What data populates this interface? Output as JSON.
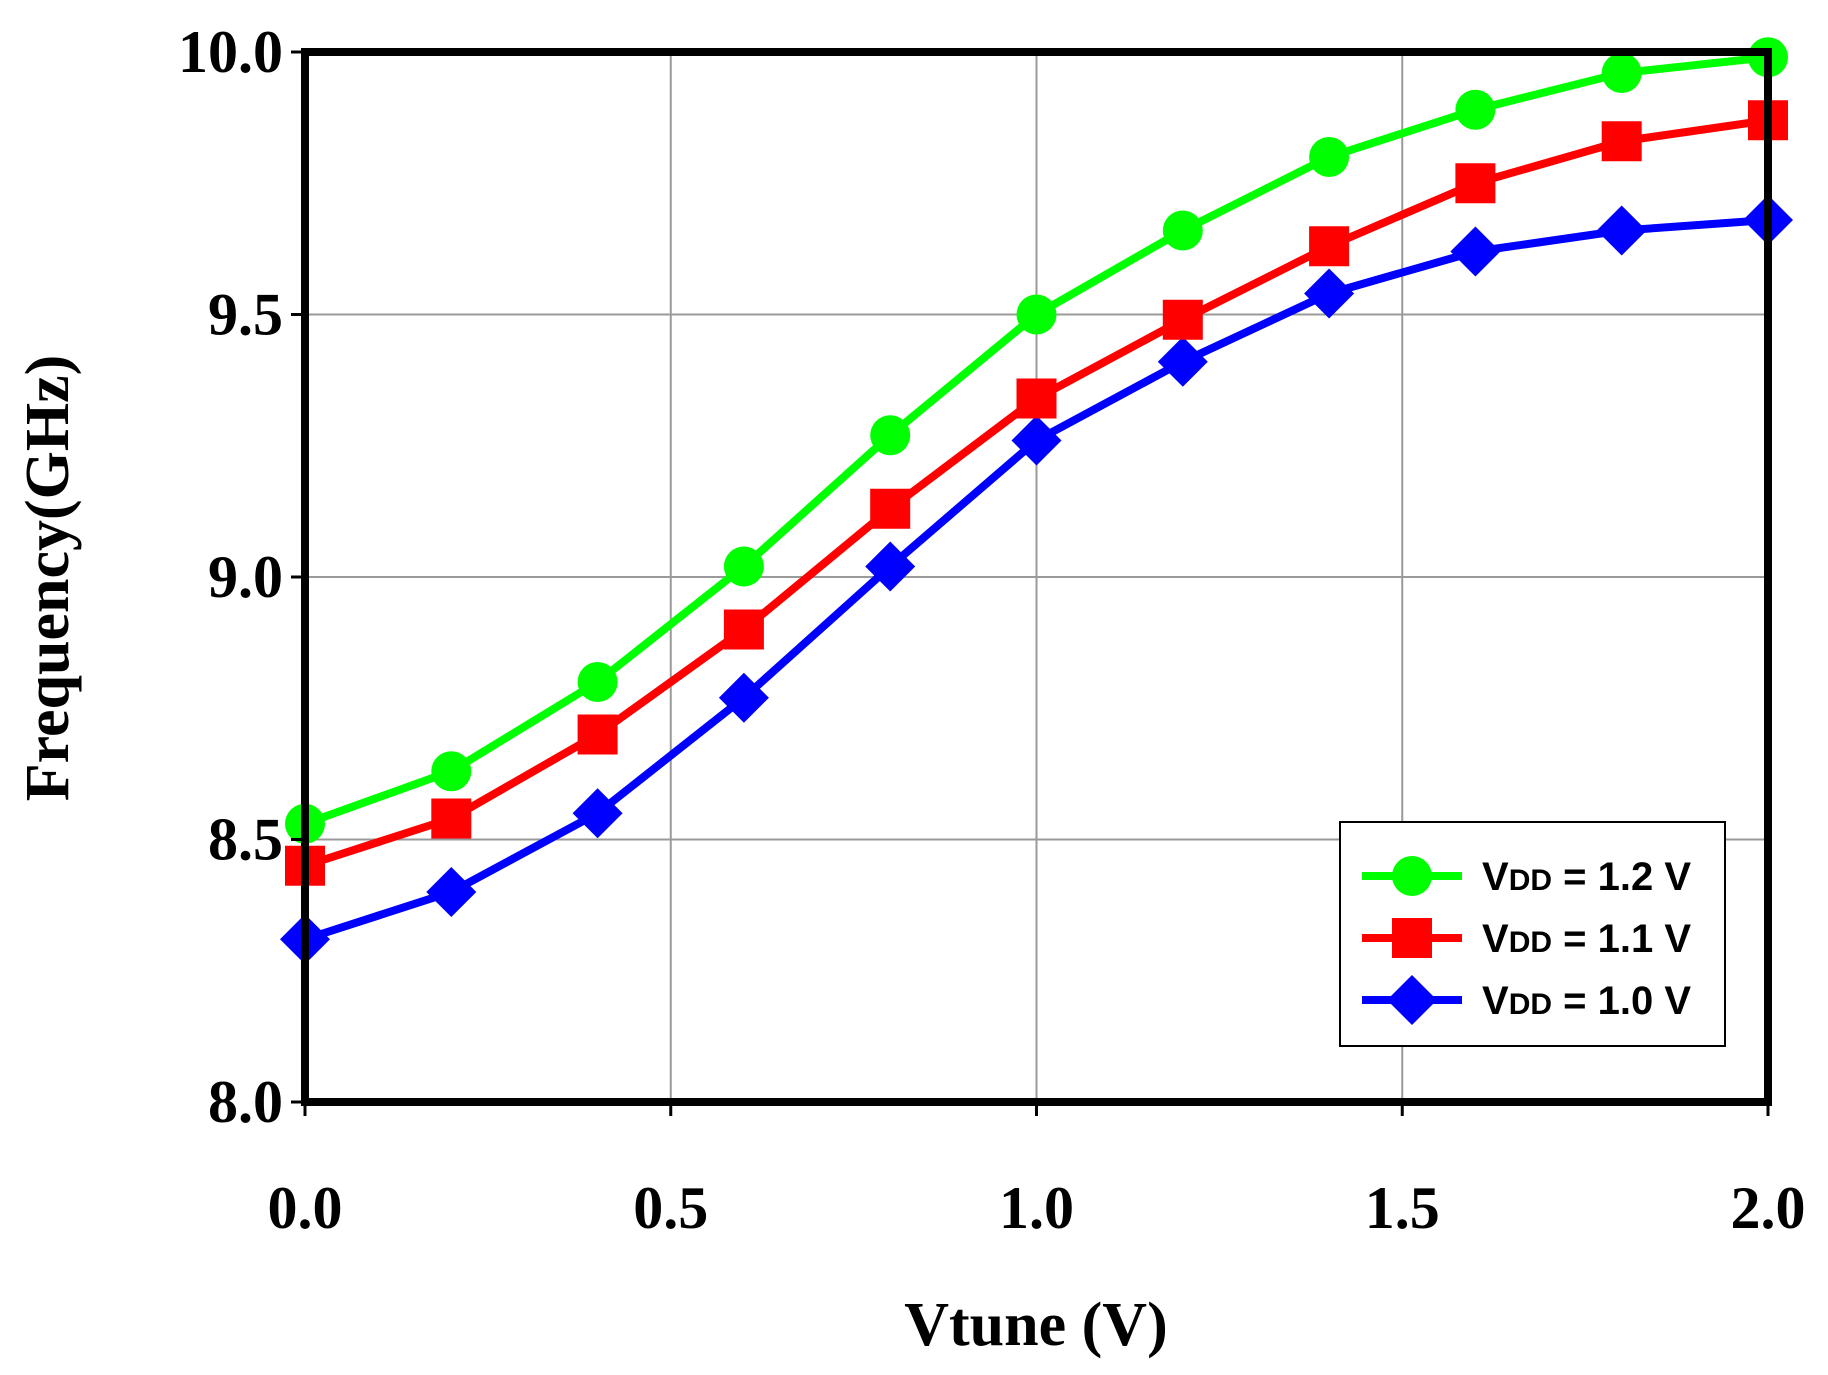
{
  "chart_data": {
    "type": "line",
    "title": "",
    "xlabel": "Vtune (V)",
    "ylabel": "Frequency(GHz)",
    "xlim": [
      0.0,
      2.0
    ],
    "ylim": [
      8.0,
      10.0
    ],
    "x_ticks": [
      "0.0",
      "0.5",
      "1.0",
      "1.5",
      "2.0"
    ],
    "y_ticks": [
      "8.0",
      "8.5",
      "9.0",
      "9.5",
      "10.0"
    ],
    "grid": true,
    "legend_position": "bottom-right",
    "x": [
      0.0,
      0.2,
      0.4,
      0.6,
      0.8,
      1.0,
      1.2,
      1.4,
      1.6,
      1.8,
      2.0
    ],
    "series": [
      {
        "name": "VDD = 1.2 V",
        "legend_sub": "DD",
        "legend_rest": " = 1.2 V",
        "color": "#00ff00",
        "marker": "circle",
        "values": [
          8.53,
          8.63,
          8.8,
          9.02,
          9.27,
          9.5,
          9.66,
          9.8,
          9.89,
          9.96,
          9.99
        ]
      },
      {
        "name": "VDD = 1.1 V",
        "legend_sub": "DD",
        "legend_rest": " = 1.1 V",
        "color": "#ff0000",
        "marker": "square",
        "values": [
          8.45,
          8.54,
          8.7,
          8.9,
          9.13,
          9.34,
          9.49,
          9.63,
          9.75,
          9.83,
          9.87
        ]
      },
      {
        "name": "VDD = 1.0 V",
        "legend_sub": "DD",
        "legend_rest": " = 1.0 V",
        "color": "#0000ff",
        "marker": "diamond",
        "values": [
          8.31,
          8.4,
          8.55,
          8.77,
          9.02,
          9.26,
          9.41,
          9.54,
          9.62,
          9.66,
          9.68
        ]
      }
    ]
  }
}
